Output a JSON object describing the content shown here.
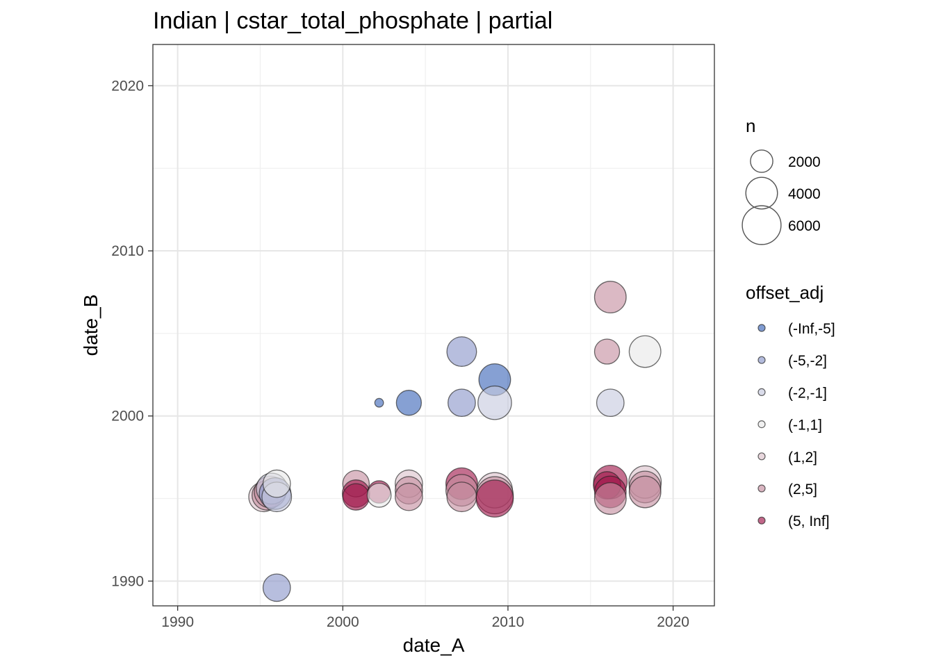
{
  "chart_data": {
    "type": "scatter",
    "title": "Indian | cstar_total_phosphate | partial",
    "xlabel": "date_A",
    "ylabel": "date_B",
    "xlim": [
      1988.5,
      2022.5
    ],
    "ylim": [
      1988.5,
      2022.5
    ],
    "x_ticks": [
      1990,
      2000,
      2010,
      2020
    ],
    "y_ticks": [
      1990,
      2000,
      2010,
      2020
    ],
    "x_tick_labels": [
      "1990",
      "2000",
      "2010",
      "2020"
    ],
    "y_tick_labels": [
      "1990",
      "2000",
      "2010",
      "2020"
    ],
    "grid": true,
    "legend_position": "right",
    "size_legend": {
      "title": "n",
      "entries": [
        {
          "label": "2000",
          "value": 2000
        },
        {
          "label": "4000",
          "value": 4000
        },
        {
          "label": "6000",
          "value": 6000
        }
      ]
    },
    "color_legend": {
      "title": "offset_adj",
      "entries": [
        {
          "label": "(-Inf,-5]",
          "color": "#3b65b8"
        },
        {
          "label": "(-5,-2]",
          "color": "#8a96c9"
        },
        {
          "label": "(-2,-1]",
          "color": "#c6cade"
        },
        {
          "label": "(-1,1]",
          "color": "#e8e8e8"
        },
        {
          "label": "(1,2]",
          "color": "#dcc2cb"
        },
        {
          "label": "(2,5]",
          "color": "#c58ea0"
        },
        {
          "label": "(5, Inf]",
          "color": "#a0164a"
        }
      ]
    },
    "points": [
      {
        "x": 1995.2,
        "y": 1995.1,
        "n": 3500,
        "offset_adj": "(1,2]"
      },
      {
        "x": 1995.4,
        "y": 1995.2,
        "n": 3500,
        "offset_adj": "(2,5]"
      },
      {
        "x": 1995.6,
        "y": 1995.4,
        "n": 4000,
        "offset_adj": "(2,5]"
      },
      {
        "x": 1995.7,
        "y": 1995.6,
        "n": 3800,
        "offset_adj": "(-2,-1]"
      },
      {
        "x": 1995.9,
        "y": 1995.3,
        "n": 4000,
        "offset_adj": "(-5,-2]"
      },
      {
        "x": 1996.0,
        "y": 1995.1,
        "n": 3500,
        "offset_adj": "(-2,-1]"
      },
      {
        "x": 1996.0,
        "y": 1995.9,
        "n": 3000,
        "offset_adj": "(-1,1]"
      },
      {
        "x": 1996.0,
        "y": 1989.6,
        "n": 3000,
        "offset_adj": "(-5,-2]"
      },
      {
        "x": 2000.8,
        "y": 1995.9,
        "n": 2800,
        "offset_adj": "(2,5]"
      },
      {
        "x": 2000.8,
        "y": 1995.3,
        "n": 3000,
        "offset_adj": "(5, Inf]"
      },
      {
        "x": 2000.8,
        "y": 1995.1,
        "n": 2800,
        "offset_adj": "(5, Inf]"
      },
      {
        "x": 2002.2,
        "y": 1995.4,
        "n": 2000,
        "offset_adj": "(5, Inf]"
      },
      {
        "x": 2002.2,
        "y": 1995.2,
        "n": 2300,
        "offset_adj": "(-1,1]"
      },
      {
        "x": 2002.2,
        "y": 2000.8,
        "n": 300,
        "offset_adj": "(-Inf,-5]"
      },
      {
        "x": 2004.0,
        "y": 2000.8,
        "n": 2500,
        "offset_adj": "(-Inf,-5]"
      },
      {
        "x": 2004.0,
        "y": 1995.9,
        "n": 3000,
        "offset_adj": "(1,2]"
      },
      {
        "x": 2004.0,
        "y": 1995.5,
        "n": 3000,
        "offset_adj": "(2,5]"
      },
      {
        "x": 2004.0,
        "y": 1995.1,
        "n": 3000,
        "offset_adj": "(2,5]"
      },
      {
        "x": 2007.2,
        "y": 2003.9,
        "n": 3500,
        "offset_adj": "(-5,-2]"
      },
      {
        "x": 2007.2,
        "y": 2000.8,
        "n": 3000,
        "offset_adj": "(-5,-2]"
      },
      {
        "x": 2007.2,
        "y": 1995.9,
        "n": 4000,
        "offset_adj": "(5, Inf]"
      },
      {
        "x": 2007.2,
        "y": 1995.5,
        "n": 4000,
        "offset_adj": "(2,5]"
      },
      {
        "x": 2007.2,
        "y": 1995.1,
        "n": 3500,
        "offset_adj": "(2,5]"
      },
      {
        "x": 2009.2,
        "y": 2002.2,
        "n": 4000,
        "offset_adj": "(-Inf,-5]"
      },
      {
        "x": 2009.2,
        "y": 2000.8,
        "n": 4500,
        "offset_adj": "(-2,-1]"
      },
      {
        "x": 2009.2,
        "y": 1995.5,
        "n": 5000,
        "offset_adj": "(1,2]"
      },
      {
        "x": 2009.2,
        "y": 1995.2,
        "n": 5500,
        "offset_adj": "(2,5]"
      },
      {
        "x": 2009.2,
        "y": 1995.0,
        "n": 5500,
        "offset_adj": "(5, Inf]"
      },
      {
        "x": 2016.2,
        "y": 2007.2,
        "n": 4000,
        "offset_adj": "(2,5]"
      },
      {
        "x": 2016.0,
        "y": 2003.9,
        "n": 2500,
        "offset_adj": "(2,5]"
      },
      {
        "x": 2016.2,
        "y": 2000.8,
        "n": 3000,
        "offset_adj": "(-2,-1]"
      },
      {
        "x": 2016.2,
        "y": 1996.0,
        "n": 4500,
        "offset_adj": "(5, Inf]"
      },
      {
        "x": 2016.0,
        "y": 1995.8,
        "n": 3000,
        "offset_adj": "(5, Inf]"
      },
      {
        "x": 2016.2,
        "y": 1995.4,
        "n": 4000,
        "offset_adj": "(5, Inf]"
      },
      {
        "x": 2016.2,
        "y": 1995.0,
        "n": 4000,
        "offset_adj": "(2,5]"
      },
      {
        "x": 2018.3,
        "y": 2003.9,
        "n": 4000,
        "offset_adj": "(-1,1]"
      },
      {
        "x": 2018.3,
        "y": 1996.0,
        "n": 4200,
        "offset_adj": "(1,2]"
      },
      {
        "x": 2018.3,
        "y": 1995.7,
        "n": 4000,
        "offset_adj": "(2,5]"
      },
      {
        "x": 2018.3,
        "y": 1995.4,
        "n": 4000,
        "offset_adj": "(2,5]"
      }
    ]
  }
}
